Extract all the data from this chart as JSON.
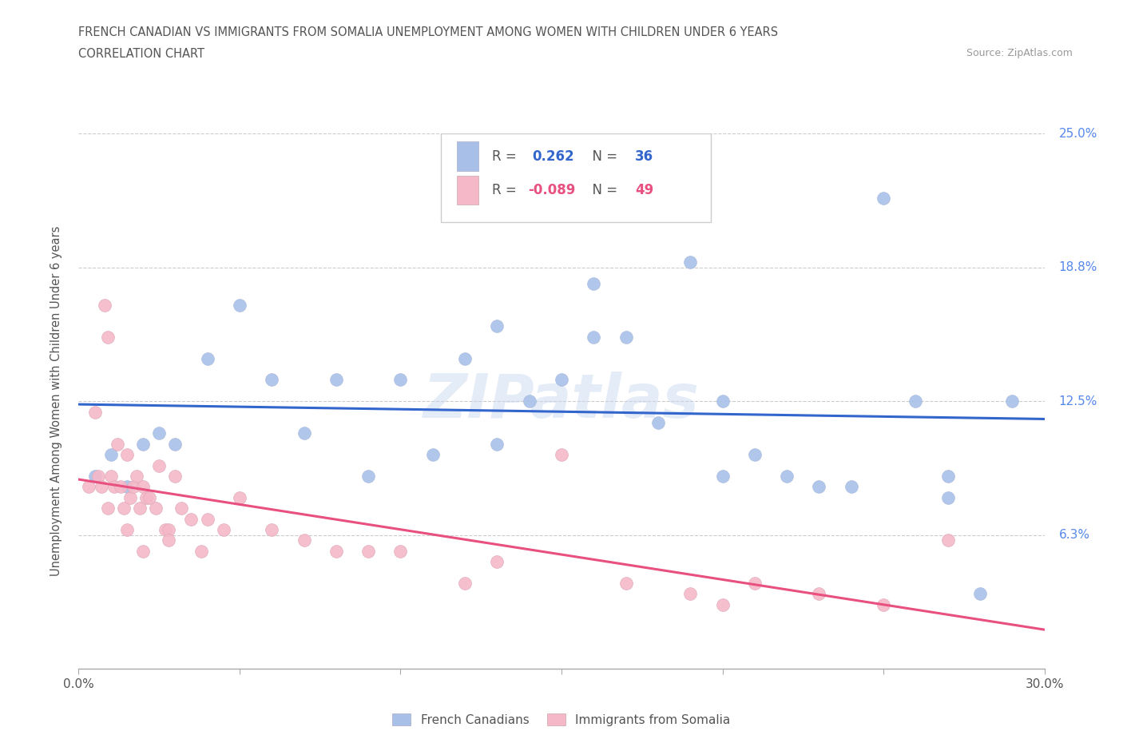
{
  "title_line1": "FRENCH CANADIAN VS IMMIGRANTS FROM SOMALIA UNEMPLOYMENT AMONG WOMEN WITH CHILDREN UNDER 6 YEARS",
  "title_line2": "CORRELATION CHART",
  "source": "Source: ZipAtlas.com",
  "ylabel": "Unemployment Among Women with Children Under 6 years",
  "y_ticks": [
    0.0,
    0.0625,
    0.125,
    0.1875,
    0.25
  ],
  "y_tick_labels": [
    "",
    "6.3%",
    "12.5%",
    "18.8%",
    "25.0%"
  ],
  "xlim": [
    0.0,
    0.3
  ],
  "ylim": [
    0.0,
    0.25
  ],
  "blue_R": 0.262,
  "blue_N": 36,
  "pink_R": -0.089,
  "pink_N": 49,
  "blue_scatter_x": [
    0.005,
    0.01,
    0.015,
    0.02,
    0.025,
    0.03,
    0.04,
    0.05,
    0.06,
    0.07,
    0.08,
    0.09,
    0.1,
    0.11,
    0.12,
    0.13,
    0.14,
    0.15,
    0.16,
    0.17,
    0.18,
    0.19,
    0.2,
    0.21,
    0.22,
    0.23,
    0.24,
    0.25,
    0.26,
    0.27,
    0.28,
    0.29,
    0.13,
    0.16,
    0.2,
    0.27
  ],
  "blue_scatter_y": [
    0.09,
    0.1,
    0.085,
    0.105,
    0.11,
    0.105,
    0.145,
    0.17,
    0.135,
    0.11,
    0.135,
    0.09,
    0.135,
    0.1,
    0.145,
    0.105,
    0.125,
    0.135,
    0.18,
    0.155,
    0.115,
    0.19,
    0.125,
    0.1,
    0.09,
    0.085,
    0.085,
    0.22,
    0.125,
    0.08,
    0.035,
    0.125,
    0.16,
    0.155,
    0.09,
    0.09
  ],
  "pink_scatter_x": [
    0.003,
    0.005,
    0.006,
    0.007,
    0.008,
    0.009,
    0.01,
    0.011,
    0.012,
    0.013,
    0.014,
    0.015,
    0.016,
    0.017,
    0.018,
    0.019,
    0.02,
    0.021,
    0.022,
    0.024,
    0.025,
    0.027,
    0.028,
    0.03,
    0.032,
    0.035,
    0.038,
    0.04,
    0.045,
    0.05,
    0.06,
    0.07,
    0.08,
    0.09,
    0.1,
    0.12,
    0.13,
    0.15,
    0.17,
    0.19,
    0.2,
    0.21,
    0.23,
    0.25,
    0.27,
    0.009,
    0.015,
    0.02,
    0.028
  ],
  "pink_scatter_y": [
    0.085,
    0.12,
    0.09,
    0.085,
    0.17,
    0.155,
    0.09,
    0.085,
    0.105,
    0.085,
    0.075,
    0.1,
    0.08,
    0.085,
    0.09,
    0.075,
    0.085,
    0.08,
    0.08,
    0.075,
    0.095,
    0.065,
    0.065,
    0.09,
    0.075,
    0.07,
    0.055,
    0.07,
    0.065,
    0.08,
    0.065,
    0.06,
    0.055,
    0.055,
    0.055,
    0.04,
    0.05,
    0.1,
    0.04,
    0.035,
    0.03,
    0.04,
    0.035,
    0.03,
    0.06,
    0.075,
    0.065,
    0.055,
    0.06
  ],
  "blue_color": "#a8c0e8",
  "pink_color": "#f5b8c8",
  "blue_line_color": "#3366cc",
  "pink_line_color": "#e85080",
  "watermark": "ZIPatlas",
  "legend_blue_label": "French Canadians",
  "legend_pink_label": "Immigrants from Somalia",
  "background_color": "#ffffff",
  "grid_color": "#cccccc"
}
